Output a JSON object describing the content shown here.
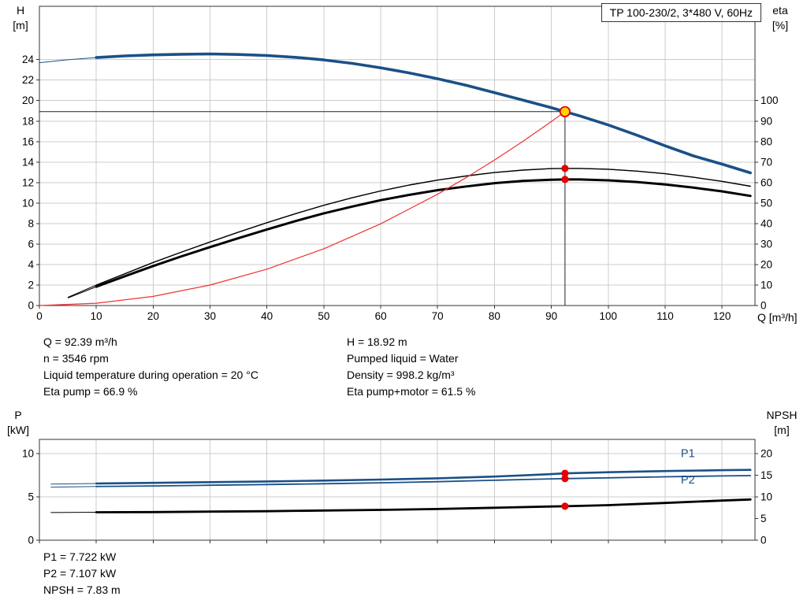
{
  "title_box": "TP 100-230/2, 3*480 V, 60Hz",
  "axis_labels": {
    "top_left": [
      "H",
      "[m]"
    ],
    "top_right": [
      "eta",
      "[%]"
    ],
    "x_right": "Q [m³/h]",
    "bottom_left": [
      "P",
      "[kW]"
    ],
    "bottom_right": [
      "NPSH",
      "[m]"
    ]
  },
  "info_left": [
    "Q = 92.39 m³/h",
    "n = 3546 rpm",
    "Liquid temperature during operation = 20 °C",
    "Eta pump = 66.9 %"
  ],
  "info_right": [
    "H = 18.92 m",
    "Pumped liquid = Water",
    "Density = 998.2 kg/m³",
    "Eta pump+motor = 61.5 %"
  ],
  "info_bottom": [
    "P1 = 7.722 kW",
    "P2 = 7.107 kW",
    "NPSH = 7.83 m"
  ],
  "colors": {
    "curve_blue": "#1b5087",
    "curve_black": "#000000",
    "system_red": "#f03030",
    "marker_red": "#e60000",
    "duty_fill": "#ffd400",
    "grid": "#cccccc",
    "frame": "#333333"
  },
  "chart_data": [
    {
      "type": "line",
      "title": "TP 100-230/2, 3*480 V, 60Hz",
      "x": {
        "label": "Q [m³/h]",
        "min": 0,
        "max": 125.8,
        "ticks": [
          0,
          10,
          20,
          30,
          40,
          50,
          60,
          70,
          80,
          90,
          100,
          110,
          120
        ],
        "show_labels": true
      },
      "y_left": {
        "label": "H [m]",
        "min": 0,
        "max": 29.2,
        "ticks": [
          0,
          2,
          4,
          6,
          8,
          10,
          12,
          14,
          16,
          18,
          20,
          22,
          24
        ]
      },
      "y_right": {
        "label": "eta [%]",
        "min": 0,
        "max": 146,
        "ticks": [
          0,
          10,
          20,
          30,
          40,
          50,
          60,
          70,
          80,
          90,
          100
        ]
      },
      "series": [
        {
          "name": "pump-head-curve",
          "axis": "left",
          "color": "#1b5087",
          "width": 3.6,
          "thin_lead_until": 8,
          "points": [
            [
              0,
              23.7
            ],
            [
              5,
              23.98
            ],
            [
              10,
              24.2
            ],
            [
              15,
              24.36
            ],
            [
              20,
              24.46
            ],
            [
              25,
              24.52
            ],
            [
              30,
              24.55
            ],
            [
              35,
              24.5
            ],
            [
              40,
              24.4
            ],
            [
              45,
              24.22
            ],
            [
              50,
              23.97
            ],
            [
              55,
              23.63
            ],
            [
              60,
              23.2
            ],
            [
              65,
              22.7
            ],
            [
              70,
              22.13
            ],
            [
              75,
              21.5
            ],
            [
              80,
              20.78
            ],
            [
              85,
              20.05
            ],
            [
              90,
              19.3
            ],
            [
              92.39,
              18.92
            ],
            [
              95,
              18.5
            ],
            [
              100,
              17.62
            ],
            [
              105,
              16.63
            ],
            [
              110,
              15.58
            ],
            [
              115,
              14.6
            ],
            [
              120,
              13.8
            ],
            [
              125,
              12.95
            ]
          ]
        },
        {
          "name": "eta-pump-curve",
          "axis": "right",
          "color": "#000000",
          "width": 1.4,
          "thin_lead_until": 10,
          "points": [
            [
              5,
              4
            ],
            [
              10,
              10
            ],
            [
              15,
              15.5
            ],
            [
              20,
              21
            ],
            [
              25,
              26.1
            ],
            [
              30,
              31
            ],
            [
              35,
              35.8
            ],
            [
              40,
              40.4
            ],
            [
              45,
              44.8
            ],
            [
              50,
              48.9
            ],
            [
              55,
              52.6
            ],
            [
              60,
              55.9
            ],
            [
              65,
              58.8
            ],
            [
              70,
              61.2
            ],
            [
              75,
              63.2
            ],
            [
              80,
              64.9
            ],
            [
              85,
              66.1
            ],
            [
              90,
              66.8
            ],
            [
              92.39,
              66.9
            ],
            [
              95,
              66.9
            ],
            [
              100,
              66.5
            ],
            [
              105,
              65.6
            ],
            [
              110,
              64.3
            ],
            [
              115,
              62.6
            ],
            [
              120,
              60.6
            ],
            [
              125,
              58.2
            ]
          ]
        },
        {
          "name": "eta-pump-motor-curve",
          "axis": "right",
          "color": "#000000",
          "width": 3,
          "thin_lead_until": 10,
          "points": [
            [
              5,
              3.7
            ],
            [
              10,
              9.2
            ],
            [
              15,
              14.3
            ],
            [
              20,
              19.3
            ],
            [
              25,
              24
            ],
            [
              30,
              28.5
            ],
            [
              35,
              32.9
            ],
            [
              40,
              37.1
            ],
            [
              45,
              41.2
            ],
            [
              50,
              45
            ],
            [
              55,
              48.3
            ],
            [
              60,
              51.4
            ],
            [
              65,
              54
            ],
            [
              70,
              56.3
            ],
            [
              75,
              58.1
            ],
            [
              80,
              59.7
            ],
            [
              85,
              60.8
            ],
            [
              90,
              61.4
            ],
            [
              92.39,
              61.5
            ],
            [
              95,
              61.5
            ],
            [
              100,
              61.1
            ],
            [
              105,
              60.3
            ],
            [
              110,
              59.1
            ],
            [
              115,
              57.5
            ],
            [
              120,
              55.7
            ],
            [
              125,
              53.5
            ]
          ]
        },
        {
          "name": "system-curve",
          "axis": "left",
          "color": "#f03030",
          "width": 1.2,
          "points": [
            [
              0,
              0
            ],
            [
              10,
              0.22
            ],
            [
              20,
              0.89
            ],
            [
              30,
              2.0
            ],
            [
              40,
              3.55
            ],
            [
              50,
              5.54
            ],
            [
              60,
              7.98
            ],
            [
              70,
              10.86
            ],
            [
              75,
              12.47
            ],
            [
              80,
              14.19
            ],
            [
              85,
              16.02
            ],
            [
              90,
              17.95
            ],
            [
              92.39,
              18.92
            ]
          ]
        }
      ],
      "crosshair": {
        "x": 92.39,
        "y": 18.92
      },
      "markers": [
        {
          "x": 92.39,
          "y": 66.9,
          "axis": "right"
        },
        {
          "x": 92.39,
          "y": 61.5,
          "axis": "right"
        }
      ],
      "duty_point": {
        "x": 92.39,
        "y": 18.92
      }
    },
    {
      "type": "line",
      "x": {
        "label": "Q [m³/h]",
        "min": 0,
        "max": 125.8,
        "ticks": [
          0,
          10,
          20,
          30,
          40,
          50,
          60,
          70,
          80,
          90,
          100,
          110,
          120
        ],
        "show_labels": false
      },
      "y_left": {
        "label": "P [kW]",
        "min": 0,
        "max": 11.64,
        "ticks": [
          0,
          5,
          10
        ]
      },
      "y_right": {
        "label": "NPSH [m]",
        "min": 0,
        "max": 23.28,
        "ticks": [
          0,
          5,
          10,
          15,
          20
        ]
      },
      "series": [
        {
          "name": "p1-curve",
          "axis": "left",
          "color": "#1b5087",
          "width": 2.6,
          "thin_lead_until": 10,
          "label": {
            "text": "P1",
            "x": 114,
            "y": 9.6
          },
          "points": [
            [
              2,
              6.48
            ],
            [
              5,
              6.5
            ],
            [
              10,
              6.55
            ],
            [
              20,
              6.62
            ],
            [
              30,
              6.7
            ],
            [
              40,
              6.78
            ],
            [
              50,
              6.88
            ],
            [
              60,
              7.0
            ],
            [
              70,
              7.15
            ],
            [
              80,
              7.35
            ],
            [
              85,
              7.48
            ],
            [
              90,
              7.63
            ],
            [
              92.39,
              7.722
            ],
            [
              100,
              7.85
            ],
            [
              110,
              7.98
            ],
            [
              120,
              8.08
            ],
            [
              125,
              8.12
            ]
          ]
        },
        {
          "name": "p2-curve",
          "axis": "left",
          "color": "#1b5087",
          "width": 1.8,
          "thin_lead_until": 10,
          "label": {
            "text": "P2",
            "x": 114,
            "y": 6.55
          },
          "points": [
            [
              2,
              6.13
            ],
            [
              5,
              6.15
            ],
            [
              10,
              6.2
            ],
            [
              20,
              6.27
            ],
            [
              30,
              6.35
            ],
            [
              40,
              6.43
            ],
            [
              50,
              6.52
            ],
            [
              60,
              6.63
            ],
            [
              70,
              6.76
            ],
            [
              80,
              6.92
            ],
            [
              85,
              7.0
            ],
            [
              90,
              7.08
            ],
            [
              92.39,
              7.107
            ],
            [
              100,
              7.2
            ],
            [
              110,
              7.32
            ],
            [
              120,
              7.42
            ],
            [
              125,
              7.46
            ]
          ]
        },
        {
          "name": "npsh-curve",
          "axis": "right",
          "color": "#000000",
          "width": 2.8,
          "thin_lead_until": 10,
          "points": [
            [
              2,
              6.38
            ],
            [
              5,
              6.4
            ],
            [
              10,
              6.45
            ],
            [
              20,
              6.5
            ],
            [
              30,
              6.6
            ],
            [
              40,
              6.7
            ],
            [
              50,
              6.85
            ],
            [
              60,
              7.0
            ],
            [
              70,
              7.2
            ],
            [
              80,
              7.5
            ],
            [
              90,
              7.78
            ],
            [
              92.39,
              7.83
            ],
            [
              100,
              8.1
            ],
            [
              110,
              8.6
            ],
            [
              120,
              9.15
            ],
            [
              125,
              9.4
            ]
          ]
        }
      ],
      "markers": [
        {
          "x": 92.39,
          "y": 7.722,
          "axis": "left"
        },
        {
          "x": 92.39,
          "y": 7.107,
          "axis": "left"
        },
        {
          "x": 92.39,
          "y": 7.83,
          "axis": "right"
        }
      ]
    }
  ]
}
